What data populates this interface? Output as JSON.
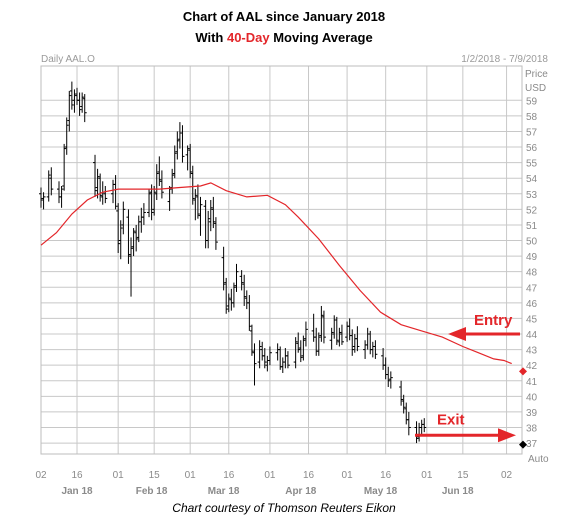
{
  "chart_data": {
    "type": "ohlc",
    "title": "Chart of AAL since January 2018",
    "subtitle": {
      "prefix": "With ",
      "highlight": "40-Day",
      "suffix": " Moving Average"
    },
    "series_label": "Daily AAL.O",
    "date_range": "1/2/2018 - 7/9/2018",
    "price_header": "Price",
    "currency": "USD",
    "auto_label": "Auto",
    "credit": "Chart courtesy of Thomson Reuters Eikon",
    "ylim": [
      36.3,
      61.2
    ],
    "yticks": [
      37,
      38,
      39,
      40,
      41,
      42,
      43,
      44,
      45,
      46,
      47,
      48,
      49,
      50,
      51,
      52,
      53,
      54,
      55,
      56,
      57,
      58,
      59
    ],
    "grid": true,
    "colors": {
      "bars": "#000000",
      "moving_average": "#e3262a",
      "grid": "#c8c8c8",
      "accent": "#e3262a"
    },
    "x_tick_labels": [
      {
        "label": "02",
        "day": 0
      },
      {
        "label": "16",
        "day": 14
      },
      {
        "label": "01",
        "day": 30
      },
      {
        "label": "15",
        "day": 44
      },
      {
        "label": "01",
        "day": 58
      },
      {
        "label": "16",
        "day": 73
      },
      {
        "label": "01",
        "day": 89
      },
      {
        "label": "16",
        "day": 104
      },
      {
        "label": "01",
        "day": 119
      },
      {
        "label": "16",
        "day": 134
      },
      {
        "label": "01",
        "day": 150
      },
      {
        "label": "15",
        "day": 164
      },
      {
        "label": "02",
        "day": 181
      }
    ],
    "month_labels": [
      {
        "label": "Jan 18",
        "day": 14
      },
      {
        "label": "Feb 18",
        "day": 43
      },
      {
        "label": "Mar 18",
        "day": 71
      },
      {
        "label": "Apr 18",
        "day": 101
      },
      {
        "label": "May 18",
        "day": 132
      },
      {
        "label": "Jun 18",
        "day": 162
      }
    ],
    "moving_average": [
      [
        0,
        49.7
      ],
      [
        6,
        50.5
      ],
      [
        12,
        51.7
      ],
      [
        18,
        52.6
      ],
      [
        24,
        53.1
      ],
      [
        30,
        53.3
      ],
      [
        38,
        53.3
      ],
      [
        46,
        53.3
      ],
      [
        54,
        53.4
      ],
      [
        62,
        53.5
      ],
      [
        66,
        53.7
      ],
      [
        72,
        53.2
      ],
      [
        80,
        52.8
      ],
      [
        88,
        52.9
      ],
      [
        95,
        52.3
      ],
      [
        100,
        51.5
      ],
      [
        108,
        50.1
      ],
      [
        116,
        48.4
      ],
      [
        124,
        46.8
      ],
      [
        132,
        45.4
      ],
      [
        140,
        44.6
      ],
      [
        148,
        44.2
      ],
      [
        156,
        43.8
      ],
      [
        164,
        43.2
      ],
      [
        170,
        42.8
      ],
      [
        176,
        42.4
      ],
      [
        180,
        42.3
      ],
      [
        183,
        42.1
      ]
    ],
    "ohlc": [
      [
        0,
        53.0,
        53.4,
        52.1,
        52.6
      ],
      [
        1,
        52.7,
        53.1,
        52.0,
        52.8
      ],
      [
        3,
        52.8,
        54.5,
        52.5,
        54.2
      ],
      [
        4,
        54.0,
        54.7,
        52.9,
        53.3
      ],
      [
        7,
        53.3,
        53.8,
        52.4,
        52.8
      ],
      [
        8,
        52.8,
        53.5,
        52.1,
        53.3
      ],
      [
        9,
        53.5,
        56.2,
        53.2,
        55.9
      ],
      [
        10,
        56.0,
        57.9,
        55.5,
        57.4
      ],
      [
        11,
        57.7,
        59.6,
        57.0,
        59.3
      ],
      [
        12,
        59.6,
        60.2,
        58.4,
        58.7
      ],
      [
        13,
        59.0,
        59.7,
        58.2,
        59.4
      ],
      [
        14,
        59.3,
        59.8,
        58.7,
        59.0
      ],
      [
        15,
        59.0,
        59.5,
        58.0,
        58.4
      ],
      [
        16,
        58.6,
        59.5,
        58.2,
        59.2
      ],
      [
        17,
        59.1,
        59.4,
        57.6,
        58.2
      ],
      [
        21,
        55.0,
        55.5,
        52.8,
        53.2
      ],
      [
        22,
        53.4,
        54.6,
        52.7,
        54.1
      ],
      [
        23,
        54.0,
        54.3,
        52.5,
        52.9
      ],
      [
        24,
        52.8,
        53.8,
        52.3,
        53.1
      ],
      [
        25,
        53.0,
        53.5,
        52.4,
        52.7
      ],
      [
        28,
        53.0,
        53.9,
        52.4,
        53.6
      ],
      [
        29,
        53.6,
        54.2,
        52.0,
        52.2
      ],
      [
        30,
        51.9,
        52.4,
        49.2,
        49.8
      ],
      [
        31,
        50.0,
        51.3,
        48.8,
        50.8
      ],
      [
        32,
        51.0,
        52.5,
        50.4,
        52.0
      ],
      [
        34,
        51.5,
        52.0,
        48.5,
        49.1
      ],
      [
        35,
        49.0,
        50.2,
        46.4,
        49.5
      ],
      [
        36,
        49.6,
        50.8,
        49.0,
        50.6
      ],
      [
        37,
        50.5,
        51.0,
        49.3,
        50.1
      ],
      [
        38,
        50.2,
        51.6,
        49.9,
        51.2
      ],
      [
        39,
        51.2,
        52.1,
        50.5,
        51.5
      ],
      [
        40,
        51.5,
        52.4,
        51.0,
        51.8
      ],
      [
        42,
        51.8,
        53.3,
        51.5,
        53.0
      ],
      [
        43,
        53.1,
        53.6,
        51.3,
        51.8
      ],
      [
        44,
        52.0,
        53.5,
        51.6,
        53.1
      ],
      [
        45,
        53.0,
        54.9,
        52.6,
        54.3
      ],
      [
        46,
        54.4,
        55.4,
        53.5,
        53.9
      ],
      [
        47,
        53.8,
        54.5,
        52.7,
        53.1
      ],
      [
        50,
        52.5,
        53.5,
        51.9,
        53.3
      ],
      [
        51,
        53.4,
        54.6,
        53.0,
        54.2
      ],
      [
        52,
        54.3,
        56.1,
        54.0,
        55.6
      ],
      [
        53,
        55.7,
        57.0,
        55.2,
        56.4
      ],
      [
        54,
        56.5,
        57.6,
        55.9,
        56.9
      ],
      [
        55,
        56.9,
        57.4,
        55.0,
        55.4
      ],
      [
        57,
        55.5,
        56.1,
        54.5,
        55.9
      ],
      [
        58,
        55.8,
        56.2,
        54.0,
        54.4
      ],
      [
        59,
        54.3,
        54.8,
        52.3,
        52.7
      ],
      [
        60,
        52.6,
        53.3,
        51.3,
        52.9
      ],
      [
        61,
        52.8,
        53.6,
        51.4,
        51.7
      ],
      [
        62,
        51.6,
        52.8,
        50.3,
        52.3
      ],
      [
        64,
        52.2,
        52.6,
        49.5,
        50.0
      ],
      [
        65,
        50.0,
        51.9,
        49.5,
        51.4
      ],
      [
        66,
        51.2,
        52.6,
        50.6,
        52.1
      ],
      [
        67,
        52.0,
        52.8,
        50.8,
        51.2
      ],
      [
        68,
        51.1,
        51.5,
        49.4,
        49.9
      ],
      [
        71,
        48.9,
        49.6,
        46.8,
        47.2
      ],
      [
        72,
        47.3,
        47.6,
        45.3,
        45.6
      ],
      [
        73,
        45.8,
        46.6,
        45.4,
        46.3
      ],
      [
        74,
        46.2,
        46.9,
        45.5,
        46.0
      ],
      [
        75,
        46.0,
        47.3,
        45.7,
        47.0
      ],
      [
        76,
        47.1,
        48.5,
        46.7,
        48.0
      ],
      [
        78,
        47.7,
        48.1,
        46.8,
        47.3
      ],
      [
        79,
        47.2,
        47.8,
        45.8,
        46.4
      ],
      [
        80,
        46.3,
        46.8,
        45.6,
        46.0
      ],
      [
        81,
        46.0,
        46.5,
        44.2,
        44.5
      ],
      [
        82,
        44.2,
        44.6,
        42.6,
        42.9
      ],
      [
        83,
        42.8,
        43.4,
        40.7,
        42.1
      ],
      [
        85,
        42.2,
        43.6,
        41.8,
        43.2
      ],
      [
        86,
        43.0,
        43.5,
        42.3,
        42.6
      ],
      [
        87,
        42.6,
        43.1,
        41.8,
        42.2
      ],
      [
        88,
        42.0,
        42.6,
        41.6,
        42.3
      ],
      [
        89,
        42.3,
        43.2,
        42.0,
        42.8
      ],
      [
        92,
        42.8,
        43.4,
        42.3,
        43.0
      ],
      [
        93,
        43.0,
        43.2,
        41.7,
        41.9
      ],
      [
        94,
        41.9,
        42.5,
        41.5,
        42.2
      ],
      [
        95,
        42.2,
        43.1,
        41.8,
        42.6
      ],
      [
        96,
        42.6,
        42.9,
        41.8,
        42.0
      ],
      [
        99,
        42.2,
        43.8,
        41.8,
        43.5
      ],
      [
        100,
        43.4,
        44.1,
        42.8,
        43.0
      ],
      [
        101,
        43.1,
        43.6,
        42.2,
        42.5
      ],
      [
        102,
        42.6,
        43.9,
        42.3,
        43.6
      ],
      [
        103,
        43.7,
        44.8,
        43.2,
        44.3
      ],
      [
        106,
        44.2,
        45.3,
        43.5,
        43.8
      ],
      [
        107,
        43.8,
        44.4,
        42.6,
        42.9
      ],
      [
        108,
        42.9,
        44.1,
        42.6,
        43.8
      ],
      [
        109,
        43.9,
        45.8,
        43.5,
        45.2
      ],
      [
        110,
        45.1,
        45.5,
        43.4,
        43.8
      ],
      [
        113,
        43.6,
        44.4,
        43.0,
        44.1
      ],
      [
        114,
        44.0,
        45.2,
        43.7,
        44.9
      ],
      [
        115,
        44.9,
        45.1,
        43.3,
        43.6
      ],
      [
        116,
        43.5,
        44.4,
        43.2,
        44.1
      ],
      [
        117,
        44.0,
        44.6,
        43.3,
        43.5
      ],
      [
        119,
        43.8,
        44.8,
        43.5,
        44.5
      ],
      [
        120,
        44.5,
        45.0,
        43.6,
        43.9
      ],
      [
        121,
        43.9,
        44.3,
        42.6,
        43.0
      ],
      [
        122,
        43.2,
        44.0,
        42.8,
        43.7
      ],
      [
        123,
        43.7,
        44.5,
        42.9,
        43.2
      ],
      [
        126,
        43.0,
        43.6,
        42.4,
        43.3
      ],
      [
        127,
        43.3,
        44.4,
        43.0,
        44.0
      ],
      [
        128,
        44.0,
        44.2,
        42.7,
        43.0
      ],
      [
        129,
        43.0,
        43.5,
        42.5,
        43.2
      ],
      [
        130,
        43.2,
        43.6,
        42.4,
        42.7
      ],
      [
        133,
        42.6,
        43.1,
        41.7,
        42.0
      ],
      [
        134,
        42.0,
        42.5,
        41.1,
        41.4
      ],
      [
        135,
        41.4,
        41.9,
        40.6,
        41.0
      ],
      [
        136,
        41.1,
        41.6,
        40.5,
        41.2
      ],
      [
        140,
        40.6,
        41.0,
        39.4,
        39.8
      ],
      [
        141,
        39.7,
        40.1,
        38.9,
        39.3
      ],
      [
        142,
        39.2,
        39.6,
        38.2,
        38.5
      ],
      [
        143,
        38.5,
        39.0,
        37.5,
        38.0
      ],
      [
        146,
        38.0,
        38.4,
        37.0,
        37.3
      ],
      [
        147,
        37.4,
        38.3,
        37.1,
        38.0
      ],
      [
        148,
        38.0,
        38.5,
        37.5,
        38.2
      ],
      [
        149,
        38.2,
        38.6,
        37.7,
        38.0
      ]
    ],
    "annotations": [
      {
        "label": "Entry",
        "value": 44.0
      },
      {
        "label": "Exit",
        "value": 37.5
      }
    ],
    "markers": [
      {
        "label": "ma-last-value",
        "value": 41.6
      },
      {
        "label": "price-last-value",
        "value": 36.9
      }
    ]
  }
}
